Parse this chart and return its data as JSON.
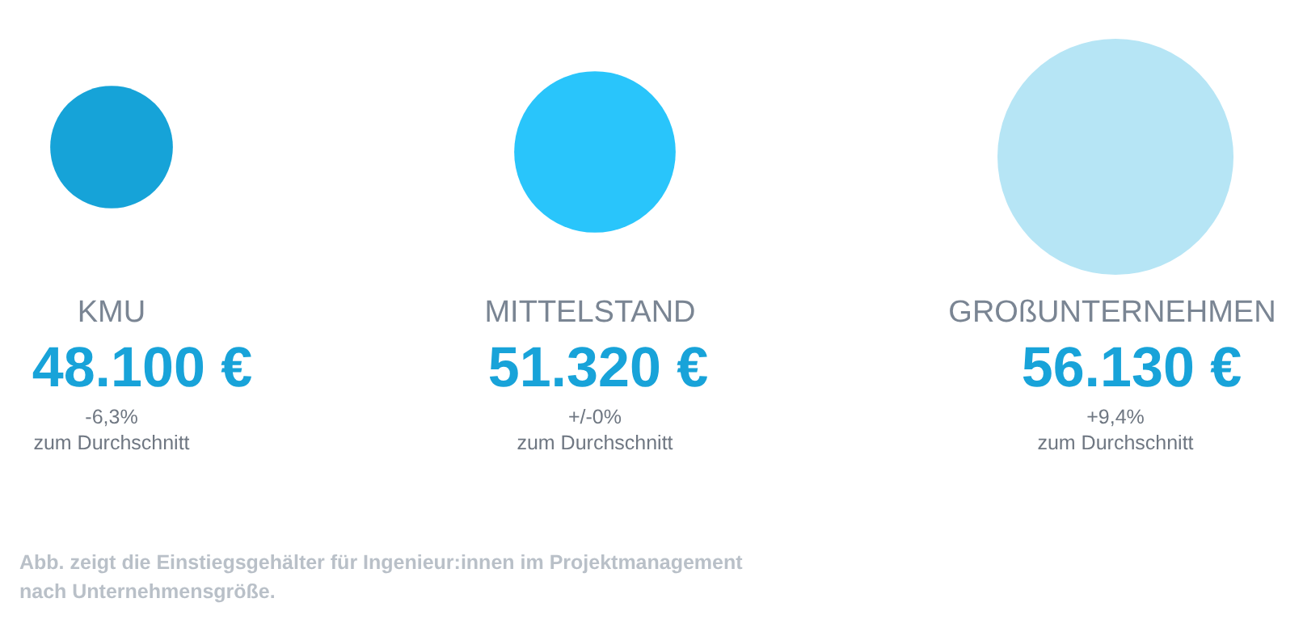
{
  "chart_data": {
    "type": "other",
    "categories": [
      "KMU",
      "MITTELSTAND",
      "GROßUNTERNEHMEN"
    ],
    "values": [
      48100,
      51320,
      56130
    ],
    "value_labels": [
      "48.100 €",
      "51.320 €",
      "56.130 €"
    ],
    "colors": [
      "#16a3d8",
      "#29c5fb",
      "#b6e5f5"
    ],
    "annotations": [
      {
        "text": "-6,3%\nzum Durchschnitt",
        "x": "KMU"
      },
      {
        "text": "+/-0%\nzum Durchschnitt",
        "x": "MITTELSTAND"
      },
      {
        "text": "+9,4%\nzum Durchschnitt",
        "x": "GROßUNTERNEHMEN"
      },
      "Abb. zeigt die Einstiegsgehälter für Ingenieur:innen im Projektmanagement\nnach Unternehmensgröße."
    ]
  }
}
